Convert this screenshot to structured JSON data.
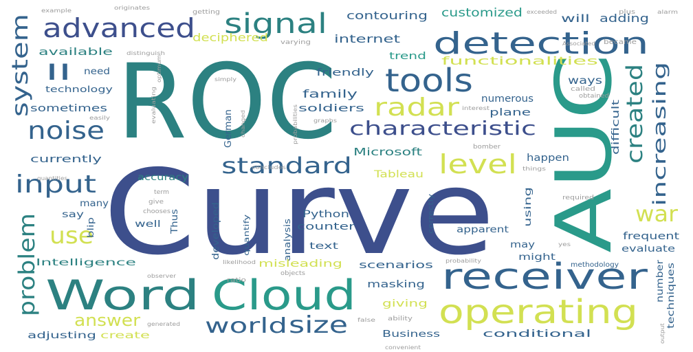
{
  "colors": {
    "background": "#ffffff",
    "navy": "#3d4f8c",
    "blue": "#34638d",
    "teal": "#2c8181",
    "green": "#2a9a8a",
    "mint": "#5dbd8a",
    "lime": "#d2e052",
    "gray": "#9c9c9c"
  },
  "words": {
    "roc": "ROC",
    "curve": "Curve",
    "auc": "AUC",
    "word": "Word",
    "cloud": "Cloud",
    "receiver": "receiver",
    "operating": "operating",
    "detection": "detection",
    "tools": "tools",
    "signal": "signal",
    "advanced": "advanced",
    "system": "system",
    "noise": "noise",
    "characteristic": "characteristic",
    "radar": "radar",
    "standard": "standard",
    "level": "level",
    "input": "input",
    "problem": "problem",
    "use": "use",
    "war": "war",
    "created": "created",
    "increasing": "increasing",
    "world": "world",
    "size": "size",
    "answer": "answer",
    "ii": "II",
    "functionalities": "functionalities",
    "customized": "customized",
    "contouring": "contouring",
    "internet": "internet",
    "deciphered": "deciphered",
    "will": "will",
    "adding": "adding",
    "available": "available",
    "trend": "trend",
    "need": "need",
    "technology": "technology",
    "friendly": "friendly",
    "ways": "ways",
    "family": "family",
    "sometimes": "sometimes",
    "soldiers": "soldiers",
    "numerous": "numerous",
    "plane": "plane",
    "difficult": "difficult",
    "german": "German",
    "microsoft": "Microsoft",
    "currently": "currently",
    "tableau": "Tableau",
    "happen": "happen",
    "accuracy": "accuracy",
    "many": "many",
    "say": "say",
    "well": "well",
    "thus": "Thus",
    "developed": "developed",
    "python": "Python",
    "counter": "counter",
    "using": "using",
    "analysis": "analysis",
    "apparent": "apparent",
    "frequent": "frequent",
    "text": "text",
    "may": "may",
    "evaluate": "evaluate",
    "might": "might",
    "intelligence": "Intelligence",
    "misleading": "misleading",
    "scenarios": "scenarios",
    "methodology": "methodology",
    "masking": "masking",
    "giving": "giving",
    "techniques": "techniques",
    "number": "number",
    "adjusting": "adjusting",
    "create": "create",
    "business": "Business",
    "conditional": "conditional",
    "blip": "blip",
    "quantify": "quantify",
    "correctly": "correctly",
    "became": "became",
    "called": "called",
    "obtained": "obtained",
    "required": "required",
    "exceeded": "exceeded",
    "associated": "Associated",
    "varying": "varying",
    "plus": "plus",
    "alarm": "alarm",
    "getting": "getting",
    "originates": "originates",
    "example": "example",
    "distinguish": "distinguish",
    "optimum": "optimum",
    "easily": "easily",
    "evaluating": "evaluating",
    "give": "give",
    "term": "term",
    "chooses": "chooses",
    "simply": "simply",
    "changed": "changed",
    "concludes": "concludes",
    "probabilities": "probabilities",
    "graphs": "graphs",
    "interest": "interest",
    "bomber": "bomber",
    "things": "things",
    "quantities": "quantities",
    "output": "output",
    "ratio": "ratio",
    "objects": "objects",
    "ability": "ability",
    "convenient": "convenient",
    "generated": "generated",
    "likelihood": "likelihood",
    "observer": "observer",
    "probability": "probability",
    "yes": "yes",
    "false": "false"
  }
}
